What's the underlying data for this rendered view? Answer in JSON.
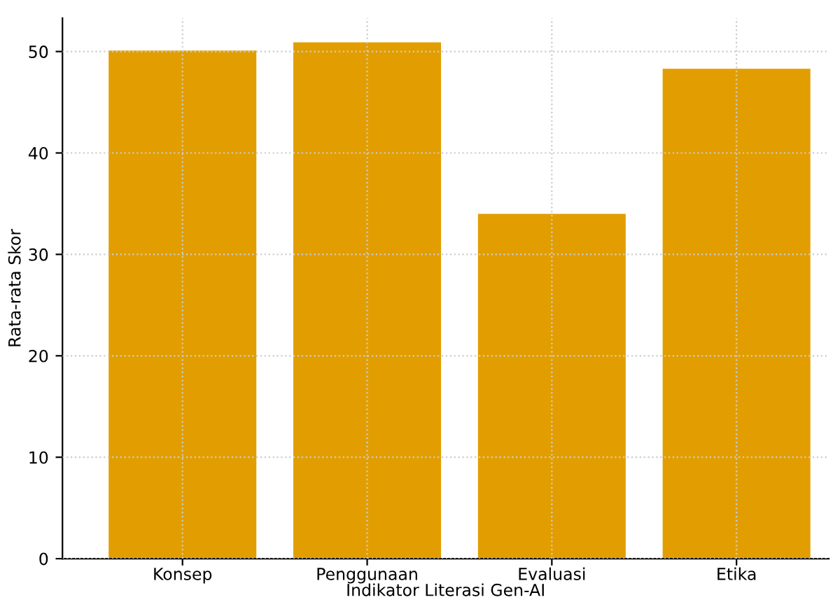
{
  "chart_data": {
    "type": "bar",
    "xlabel": "Indikator Literasi Gen-AI",
    "ylabel": "Rata-rata Skor",
    "categories": [
      "Konsep",
      "Penggunaan",
      "Evaluasi",
      "Etika"
    ],
    "values": [
      50.1,
      50.9,
      34.0,
      48.3
    ],
    "color": "#e29e00",
    "ylim": [
      0,
      53.3
    ],
    "yticks": [
      0,
      10,
      20,
      30,
      40,
      50
    ],
    "grid": true
  }
}
